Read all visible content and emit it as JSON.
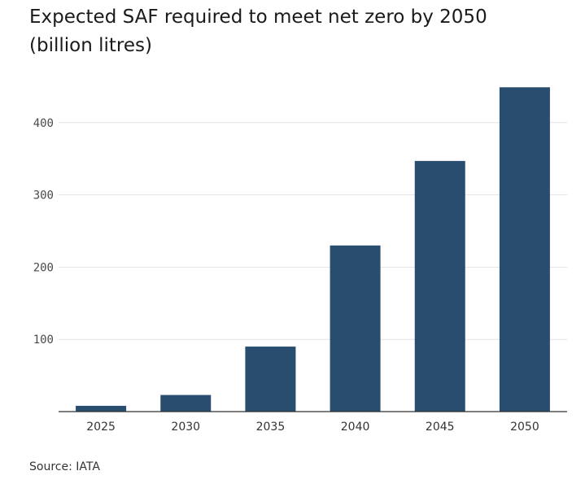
{
  "chart_data": {
    "type": "bar",
    "title_line1": "Expected SAF required to meet net zero by 2050",
    "title_line2": "(billion litres)",
    "categories": [
      "2025",
      "2030",
      "2035",
      "2040",
      "2045",
      "2050"
    ],
    "values": [
      8,
      23,
      90,
      230,
      347,
      449
    ],
    "yticks": [
      100,
      200,
      300,
      400
    ],
    "ylim": [
      0,
      470
    ],
    "xlabel": "",
    "ylabel": "",
    "grid": true,
    "legend": "none",
    "bar_color": "#284d6e",
    "gridline_color": "#e2e2e2",
    "source": "Source: IATA"
  }
}
